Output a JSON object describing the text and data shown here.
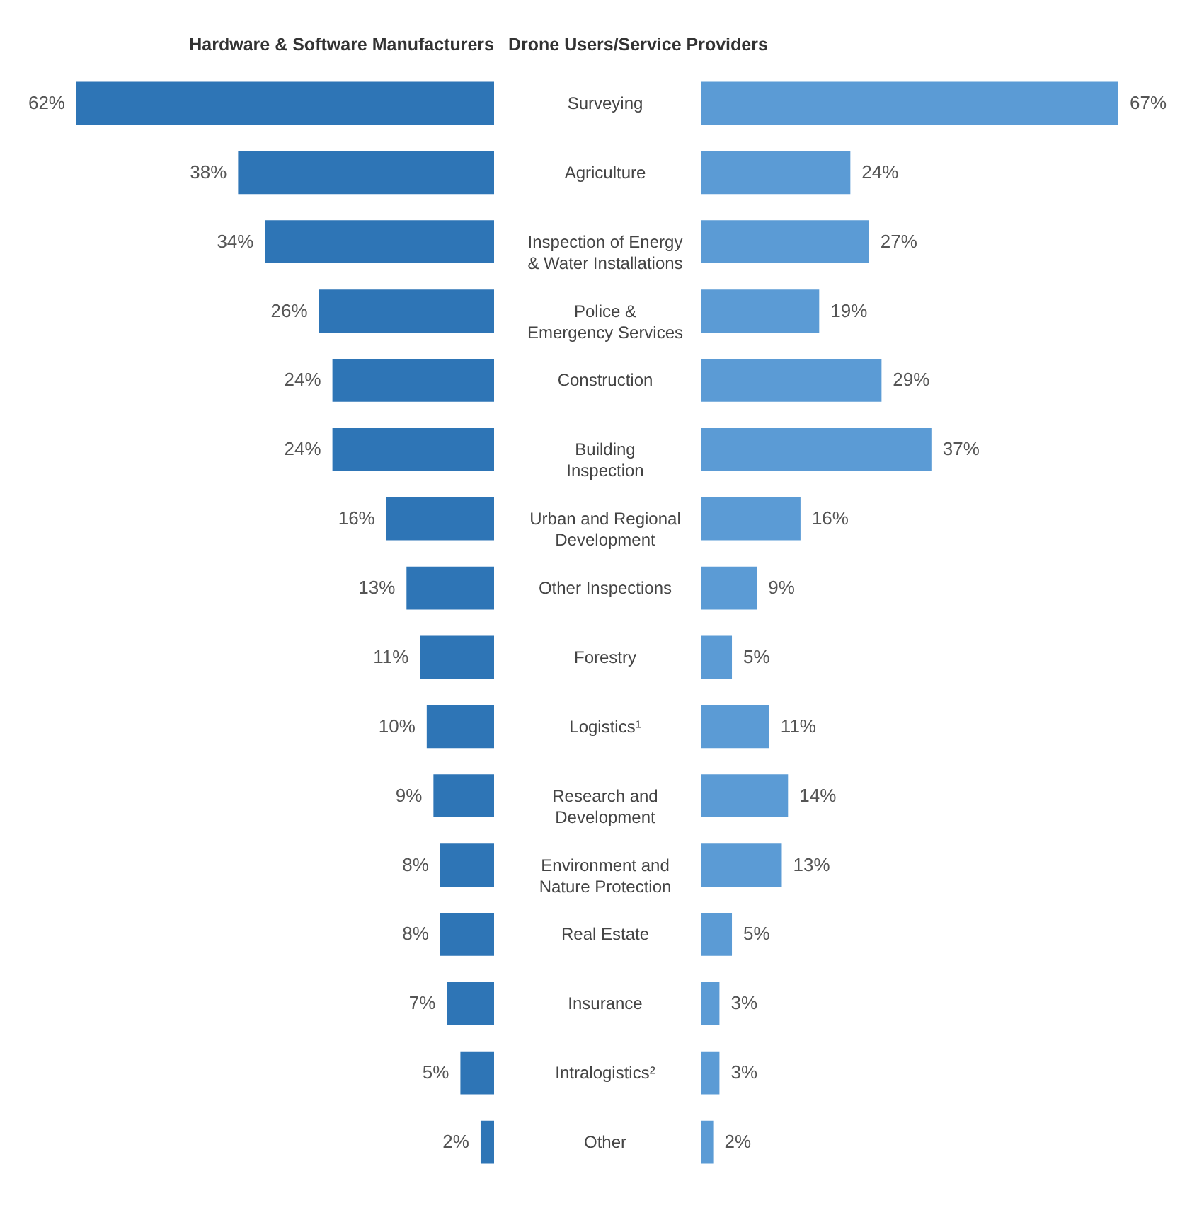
{
  "chart_data": [
    {
      "type": "bar",
      "orientation": "horizontal",
      "title": "Hardware & Software Manufacturers",
      "color": "#2e75b6",
      "tick_labels": false,
      "categories": [
        "Surveying",
        "Agriculture",
        "Inspection of Energy & Water Installations",
        "Police & Emergency Services",
        "Construction",
        "Building Inspection",
        "Urban and Regional Development",
        "Other Inspections",
        "Forestry",
        "Logistics¹",
        "Research and Development",
        "Environment and Nature Protection",
        "Real Estate",
        "Insurance",
        "Intralogistics²",
        "Other"
      ],
      "values": [
        62,
        38,
        34,
        26,
        24,
        24,
        16,
        13,
        11,
        10,
        9,
        8,
        8,
        7,
        5,
        2
      ],
      "value_labels": [
        "62%",
        "38%",
        "34%",
        "26%",
        "24%",
        "24%",
        "16%",
        "13%",
        "11%",
        "10%",
        "9%",
        "8%",
        "8%",
        "7%",
        "5%",
        "2%"
      ]
    },
    {
      "type": "bar",
      "orientation": "horizontal",
      "title": "Drone Users/Service Providers",
      "color": "#5b9bd5",
      "tick_labels": "y",
      "categories": [
        "Surveying",
        "Agriculture",
        "Inspection of Energy & Water Installations",
        "Police & Emergency Services",
        "Construction",
        "Building Inspection",
        "Urban and Regional Development",
        "Other Inspections",
        "Forestry",
        "Logistics¹",
        "Research and Development",
        "Environment and Nature Protection",
        "Real Estate",
        "Insurance",
        "Intralogistics²",
        "Other"
      ],
      "values": [
        67,
        24,
        27,
        19,
        29,
        37,
        16,
        9,
        5,
        11,
        14,
        13,
        5,
        3,
        3,
        2
      ],
      "value_labels": [
        "67%",
        "24%",
        "27%",
        "19%",
        "29%",
        "37%",
        "16%",
        "9%",
        "5%",
        "11%",
        "14%",
        "13%",
        "5%",
        "3%",
        "3%",
        "2%"
      ]
    }
  ]
}
